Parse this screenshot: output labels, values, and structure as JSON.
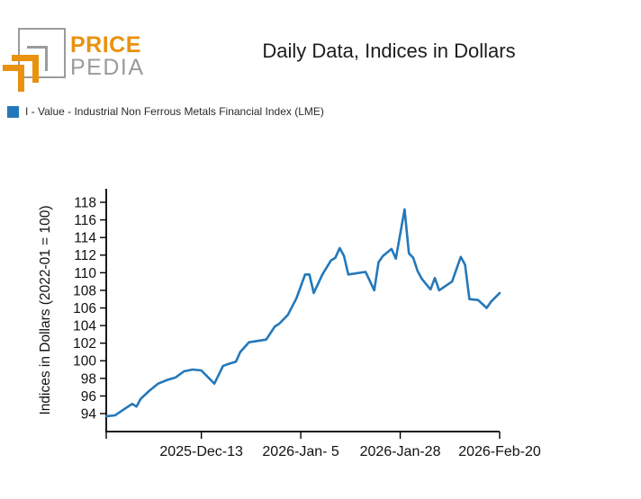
{
  "header": {
    "logo": {
      "brand_top": "PRICE",
      "brand_bottom": "PEDIA",
      "orange": "#e8920e",
      "gray": "#9b9b9b"
    },
    "title": "Daily Data, Indices in Dollars"
  },
  "legend": {
    "label": "I - Value - Industrial Non Ferrous Metals Financial Index (LME)",
    "swatch_color": "#2478b9"
  },
  "chart_data": {
    "type": "line",
    "title": "Daily Data, Indices in Dollars",
    "xlabel": "",
    "ylabel": "Indices in Dollars (2022-01 = 100)",
    "grid": false,
    "legend_position": "top-left",
    "ylim": [
      92.0,
      119.5
    ],
    "yticks": [
      94,
      96,
      98,
      100,
      102,
      104,
      106,
      108,
      110,
      112,
      114,
      116,
      118
    ],
    "x_ticks": [
      {
        "day": 0,
        "label": ""
      },
      {
        "day": 22,
        "label": "2025-Dec-13"
      },
      {
        "day": 45,
        "label": "2026-Jan- 5"
      },
      {
        "day": 68,
        "label": "2026-Jan-28"
      },
      {
        "day": 91,
        "label": "2026-Feb-20"
      }
    ],
    "x_range_days": [
      0,
      91
    ],
    "series": [
      {
        "name": "I - Value - Industrial Non Ferrous Metals Financial Index (LME)",
        "color": "#2478b9",
        "points": [
          {
            "day": 0,
            "date": "2025-Nov-21",
            "value": 93.7
          },
          {
            "day": 2,
            "date": "2025-Nov-23",
            "value": 93.8
          },
          {
            "day": 6,
            "date": "2025-Nov-27",
            "value": 95.1
          },
          {
            "day": 7,
            "date": "2025-Nov-28",
            "value": 94.8
          },
          {
            "day": 8,
            "date": "2025-Nov-29",
            "value": 95.7
          },
          {
            "day": 10,
            "date": "2025-Dec-01",
            "value": 96.6
          },
          {
            "day": 12,
            "date": "2025-Dec-03",
            "value": 97.4
          },
          {
            "day": 14,
            "date": "2025-Dec-05",
            "value": 97.8
          },
          {
            "day": 16,
            "date": "2025-Dec-07",
            "value": 98.1
          },
          {
            "day": 18,
            "date": "2025-Dec-09",
            "value": 98.8
          },
          {
            "day": 20,
            "date": "2025-Dec-11",
            "value": 99.0
          },
          {
            "day": 22,
            "date": "2025-Dec-13",
            "value": 98.9
          },
          {
            "day": 25,
            "date": "2025-Dec-16",
            "value": 97.4
          },
          {
            "day": 27,
            "date": "2025-Dec-18",
            "value": 99.4
          },
          {
            "day": 28,
            "date": "2025-Dec-19",
            "value": 99.6
          },
          {
            "day": 30,
            "date": "2025-Dec-21",
            "value": 99.9
          },
          {
            "day": 31,
            "date": "2025-Dec-22",
            "value": 101.0
          },
          {
            "day": 33,
            "date": "2025-Dec-24",
            "value": 102.1
          },
          {
            "day": 37,
            "date": "2025-Dec-28",
            "value": 102.4
          },
          {
            "day": 39,
            "date": "2025-Dec-30",
            "value": 103.9
          },
          {
            "day": 40,
            "date": "2025-Dec-31",
            "value": 104.2
          },
          {
            "day": 42,
            "date": "2026-Jan-02",
            "value": 105.2
          },
          {
            "day": 44,
            "date": "2026-Jan-04",
            "value": 107.1
          },
          {
            "day": 46,
            "date": "2026-Jan-06",
            "value": 109.8
          },
          {
            "day": 47,
            "date": "2026-Jan-07",
            "value": 109.8
          },
          {
            "day": 48,
            "date": "2026-Jan-08",
            "value": 107.7
          },
          {
            "day": 50,
            "date": "2026-Jan-10",
            "value": 109.8
          },
          {
            "day": 52,
            "date": "2026-Jan-12",
            "value": 111.4
          },
          {
            "day": 53,
            "date": "2026-Jan-13",
            "value": 111.7
          },
          {
            "day": 54,
            "date": "2026-Jan-14",
            "value": 112.8
          },
          {
            "day": 55,
            "date": "2026-Jan-15",
            "value": 111.9
          },
          {
            "day": 56,
            "date": "2026-Jan-16",
            "value": 109.8
          },
          {
            "day": 60,
            "date": "2026-Jan-20",
            "value": 110.1
          },
          {
            "day": 62,
            "date": "2026-Jan-22",
            "value": 108.0
          },
          {
            "day": 63,
            "date": "2026-Jan-23",
            "value": 111.2
          },
          {
            "day": 64,
            "date": "2026-Jan-24",
            "value": 111.9
          },
          {
            "day": 66,
            "date": "2026-Jan-26",
            "value": 112.7
          },
          {
            "day": 67,
            "date": "2026-Jan-27",
            "value": 111.6
          },
          {
            "day": 69,
            "date": "2026-Jan-29",
            "value": 117.2
          },
          {
            "day": 70,
            "date": "2026-Jan-30",
            "value": 112.2
          },
          {
            "day": 71,
            "date": "2026-Jan-31",
            "value": 111.7
          },
          {
            "day": 72,
            "date": "2026-Feb-01",
            "value": 110.2
          },
          {
            "day": 73,
            "date": "2026-Feb-02",
            "value": 109.3
          },
          {
            "day": 75,
            "date": "2026-Feb-04",
            "value": 108.1
          },
          {
            "day": 76,
            "date": "2026-Feb-05",
            "value": 109.4
          },
          {
            "day": 77,
            "date": "2026-Feb-06",
            "value": 108.0
          },
          {
            "day": 80,
            "date": "2026-Feb-09",
            "value": 109.0
          },
          {
            "day": 82,
            "date": "2026-Feb-11",
            "value": 111.8
          },
          {
            "day": 83,
            "date": "2026-Feb-12",
            "value": 110.9
          },
          {
            "day": 84,
            "date": "2026-Feb-13",
            "value": 107.0
          },
          {
            "day": 86,
            "date": "2026-Feb-15",
            "value": 106.9
          },
          {
            "day": 88,
            "date": "2026-Feb-17",
            "value": 106.0
          },
          {
            "day": 89,
            "date": "2026-Feb-18",
            "value": 106.7
          },
          {
            "day": 91,
            "date": "2026-Feb-20",
            "value": 107.7
          }
        ]
      }
    ]
  }
}
